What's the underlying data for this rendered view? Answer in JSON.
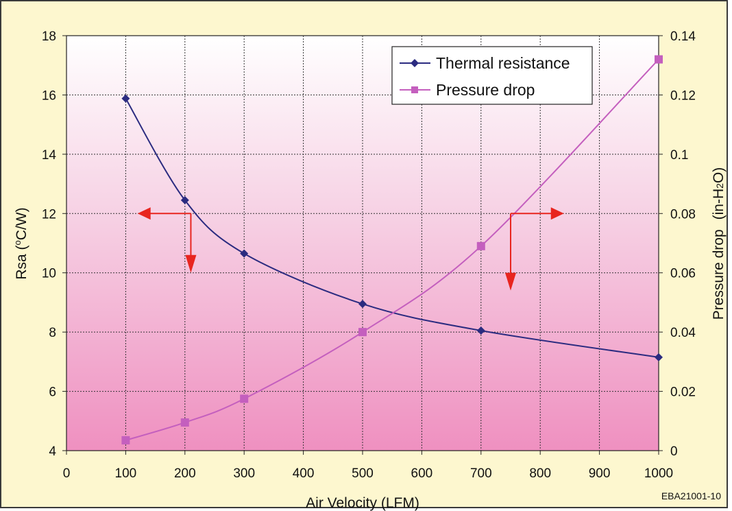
{
  "chart_data": {
    "type": "line",
    "xlabel": "Air Velocity (LFM)",
    "ylabel": "Rsa (",
    "ylabel_sup": "o",
    "ylabel_tail": "C/W)",
    "y2label": "Pressure drop",
    "y2label_unit_a": "(in-H",
    "y2label_unit_sub": "2",
    "y2label_unit_b": "O)",
    "figure_code": "EBA21001-10",
    "xlim": [
      0,
      1000
    ],
    "ylim": [
      4,
      18
    ],
    "y2lim": [
      0,
      0.14
    ],
    "x_ticks": [
      "0",
      "100",
      "200",
      "300",
      "400",
      "500",
      "600",
      "700",
      "800",
      "900",
      "1000"
    ],
    "y_ticks": [
      "4",
      "6",
      "8",
      "10",
      "12",
      "14",
      "16",
      "18"
    ],
    "y2_ticks": [
      "0",
      "0.02",
      "0.04",
      "0.06",
      "0.08",
      "0.1",
      "0.12",
      "0.14"
    ],
    "grid": true,
    "legend_position": "top-right",
    "series": [
      {
        "name": "Thermal resistance",
        "axis": "left",
        "color": "#2b2b80",
        "marker": "diamond",
        "x": [
          100,
          200,
          300,
          500,
          700,
          1000
        ],
        "y": [
          15.88,
          12.45,
          10.65,
          8.95,
          8.05,
          7.15
        ]
      },
      {
        "name": "Pressure drop",
        "axis": "right",
        "color": "#c45fbe",
        "marker": "square",
        "x": [
          100,
          200,
          300,
          500,
          700,
          1000
        ],
        "y": [
          0.0035,
          0.0095,
          0.0175,
          0.04,
          0.069,
          0.132
        ]
      }
    ],
    "annotations": [
      {
        "type": "arrow-left-down",
        "color": "#e8251f",
        "near_series": "Thermal resistance"
      },
      {
        "type": "arrow-right-down",
        "color": "#e8251f",
        "near_series": "Pressure drop"
      }
    ]
  }
}
